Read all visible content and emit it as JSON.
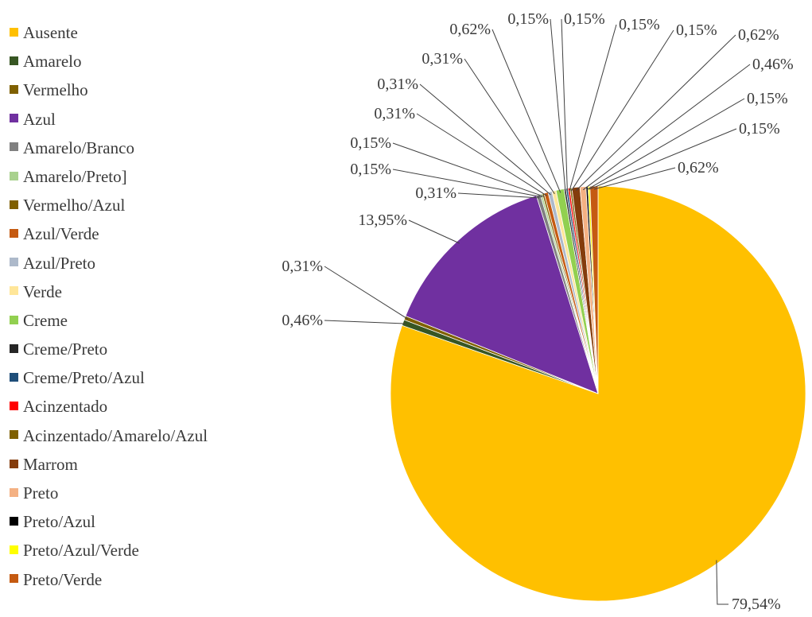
{
  "chart_data": {
    "type": "pie",
    "title": "",
    "slices": [
      {
        "label": "Ausente",
        "value": 79.54,
        "display": "79,54%",
        "color": "#FFC000"
      },
      {
        "label": "Amarelo",
        "value": 0.46,
        "display": "0,46%",
        "color": "#375623"
      },
      {
        "label": "Vermelho",
        "value": 0.31,
        "display": "0,31%",
        "color": "#7F6000"
      },
      {
        "label": "Azul",
        "value": 13.95,
        "display": "13,95%",
        "color": "#7030A0"
      },
      {
        "label": "Amarelo/Branco",
        "value": 0.31,
        "display": "0,31%",
        "color": "#808080"
      },
      {
        "label": "Amarelo/Preto]",
        "value": 0.15,
        "display": "0,15%",
        "color": "#A9D18E"
      },
      {
        "label": "Vermelho/Azul",
        "value": 0.15,
        "display": "0,15%",
        "color": "#806000"
      },
      {
        "label": "Azul/Verde",
        "value": 0.31,
        "display": "0,31%",
        "color": "#C55A11"
      },
      {
        "label": "Azul/Preto",
        "value": 0.31,
        "display": "0,31%",
        "color": "#ADB9CA"
      },
      {
        "label": "Verde",
        "value": 0.31,
        "display": "0,31%",
        "color": "#FFE699"
      },
      {
        "label": "Creme",
        "value": 0.62,
        "display": "0,62%",
        "color": "#92D050"
      },
      {
        "label": "Creme/Preto",
        "value": 0.15,
        "display": "0,15%",
        "color": "#262626"
      },
      {
        "label": "Creme/Preto/Azul",
        "value": 0.15,
        "display": "0,15%",
        "color": "#1F4E79"
      },
      {
        "label": "Acinzentado",
        "value": 0.15,
        "display": "0,15%",
        "color": "#FF0000"
      },
      {
        "label": "Acinzentado/Amarelo/Azul",
        "value": 0.15,
        "display": "0,15%",
        "color": "#7F6000"
      },
      {
        "label": "Marrom",
        "value": 0.62,
        "display": "0,62%",
        "color": "#843C0C"
      },
      {
        "label": "Preto",
        "value": 0.46,
        "display": "0,46%",
        "color": "#F4B183"
      },
      {
        "label": "Preto/Azul",
        "value": 0.15,
        "display": "0,15%",
        "color": "#000000"
      },
      {
        "label": "Preto/Azul/Verde",
        "value": 0.15,
        "display": "0,15%",
        "color": "#FFFF00"
      },
      {
        "label": "Preto/Verde",
        "value": 0.62,
        "display": "0,62%",
        "color": "#C55A11"
      }
    ],
    "legend_position": "left",
    "data_labels": "outside-with-leader-lines"
  }
}
